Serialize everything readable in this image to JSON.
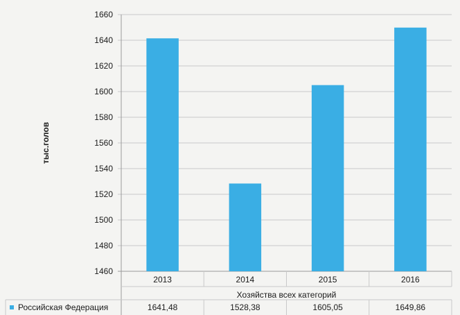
{
  "chart_data": {
    "type": "bar",
    "categories": [
      "2013",
      "2014",
      "2015",
      "2016"
    ],
    "series": [
      {
        "name": "Российская Федерация",
        "values": [
          1641.48,
          1528.38,
          1605.05,
          1649.86
        ]
      }
    ],
    "value_labels": [
      "1641,48",
      "1528,38",
      "1605,05",
      "1649,86"
    ],
    "ylabel": "тыс.голов",
    "xlabel": "Хозяйства всех категорий",
    "ylim": [
      1460,
      1660
    ],
    "yticks": [
      1460,
      1480,
      1500,
      1520,
      1540,
      1560,
      1580,
      1600,
      1620,
      1640,
      1660
    ],
    "grid": true,
    "legend": "data-table",
    "colors": {
      "bar": "#3aaee4",
      "grid": "#c9c9c9",
      "axis": "#9a9a9a"
    }
  }
}
